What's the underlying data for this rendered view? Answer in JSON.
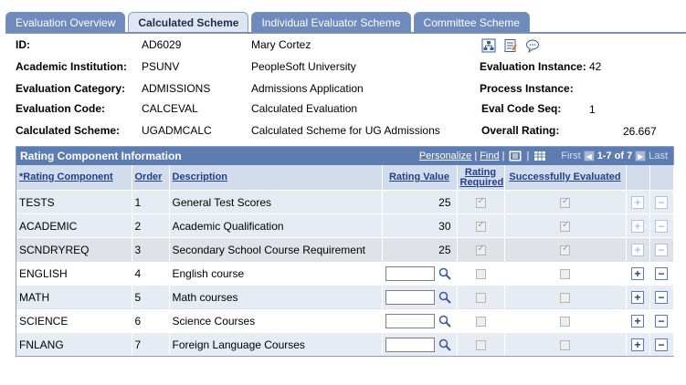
{
  "tabs": [
    {
      "label": "Evaluation Overview",
      "active": false
    },
    {
      "label": "Calculated Scheme",
      "active": true
    },
    {
      "label": "Individual Evaluator Scheme",
      "active": false
    },
    {
      "label": "Committee Scheme",
      "active": false
    }
  ],
  "header": {
    "id_label": "ID:",
    "id_value": "AD6029",
    "name": "Mary Cortez",
    "institution_label": "Academic Institution:",
    "institution_value": "PSUNV",
    "institution_desc": "PeopleSoft University",
    "category_label": "Evaluation Category:",
    "category_value": "ADMISSIONS",
    "category_desc": "Admissions Application",
    "code_label": "Evaluation Code:",
    "code_value": "CALCEVAL",
    "code_desc": "Calculated Evaluation",
    "scheme_label": "Calculated Scheme:",
    "scheme_value": "UGADMCALC",
    "scheme_desc": "Calculated Scheme for UG Admissions",
    "instance_label": "Evaluation Instance:",
    "instance_value": "42",
    "process_label": "Process Instance:",
    "process_value": "",
    "seq_label": "Eval Code Seq:",
    "seq_value": "1",
    "rating_label": "Overall Rating:",
    "rating_value": "26.667",
    "icons": [
      "org-chart-icon",
      "notepad-icon",
      "comment-bubble-icon"
    ]
  },
  "grid": {
    "title": "Rating Component Information",
    "personalize": "Personalize",
    "find": "Find",
    "first": "First",
    "range": "1-7 of 7",
    "last": "Last",
    "columns": {
      "component": "*Rating Component",
      "order": "Order",
      "description": "Description",
      "rating_value": "Rating Value",
      "rating_required": "Rating Required",
      "success": "Successfully Evaluated"
    },
    "rows": [
      {
        "component": "TESTS",
        "order": "1",
        "description": "General Test Scores",
        "rating": "25",
        "required": true,
        "success": true,
        "editable": false
      },
      {
        "component": "ACADEMIC",
        "order": "2",
        "description": "Academic Qualification",
        "rating": "30",
        "required": true,
        "success": true,
        "editable": false
      },
      {
        "component": "SCNDRYREQ",
        "order": "3",
        "description": "Secondary School Course Requirement",
        "rating": "25",
        "required": true,
        "success": true,
        "editable": false
      },
      {
        "component": "ENGLISH",
        "order": "4",
        "description": "English course",
        "rating": "",
        "required": false,
        "success": false,
        "editable": true
      },
      {
        "component": "MATH",
        "order": "5",
        "description": "Math courses",
        "rating": "",
        "required": false,
        "success": false,
        "editable": true
      },
      {
        "component": "SCIENCE",
        "order": "6",
        "description": "Science Courses",
        "rating": "",
        "required": false,
        "success": false,
        "editable": true
      },
      {
        "component": "FNLANG",
        "order": "7",
        "description": "Foreign Language Courses",
        "rating": "",
        "required": false,
        "success": false,
        "editable": true
      }
    ]
  },
  "colors": {
    "tab_bg": "#6f8bbd",
    "grid_header": "#5d7cb0",
    "column_header": "#d3dcec",
    "link": "#1f3f87"
  }
}
